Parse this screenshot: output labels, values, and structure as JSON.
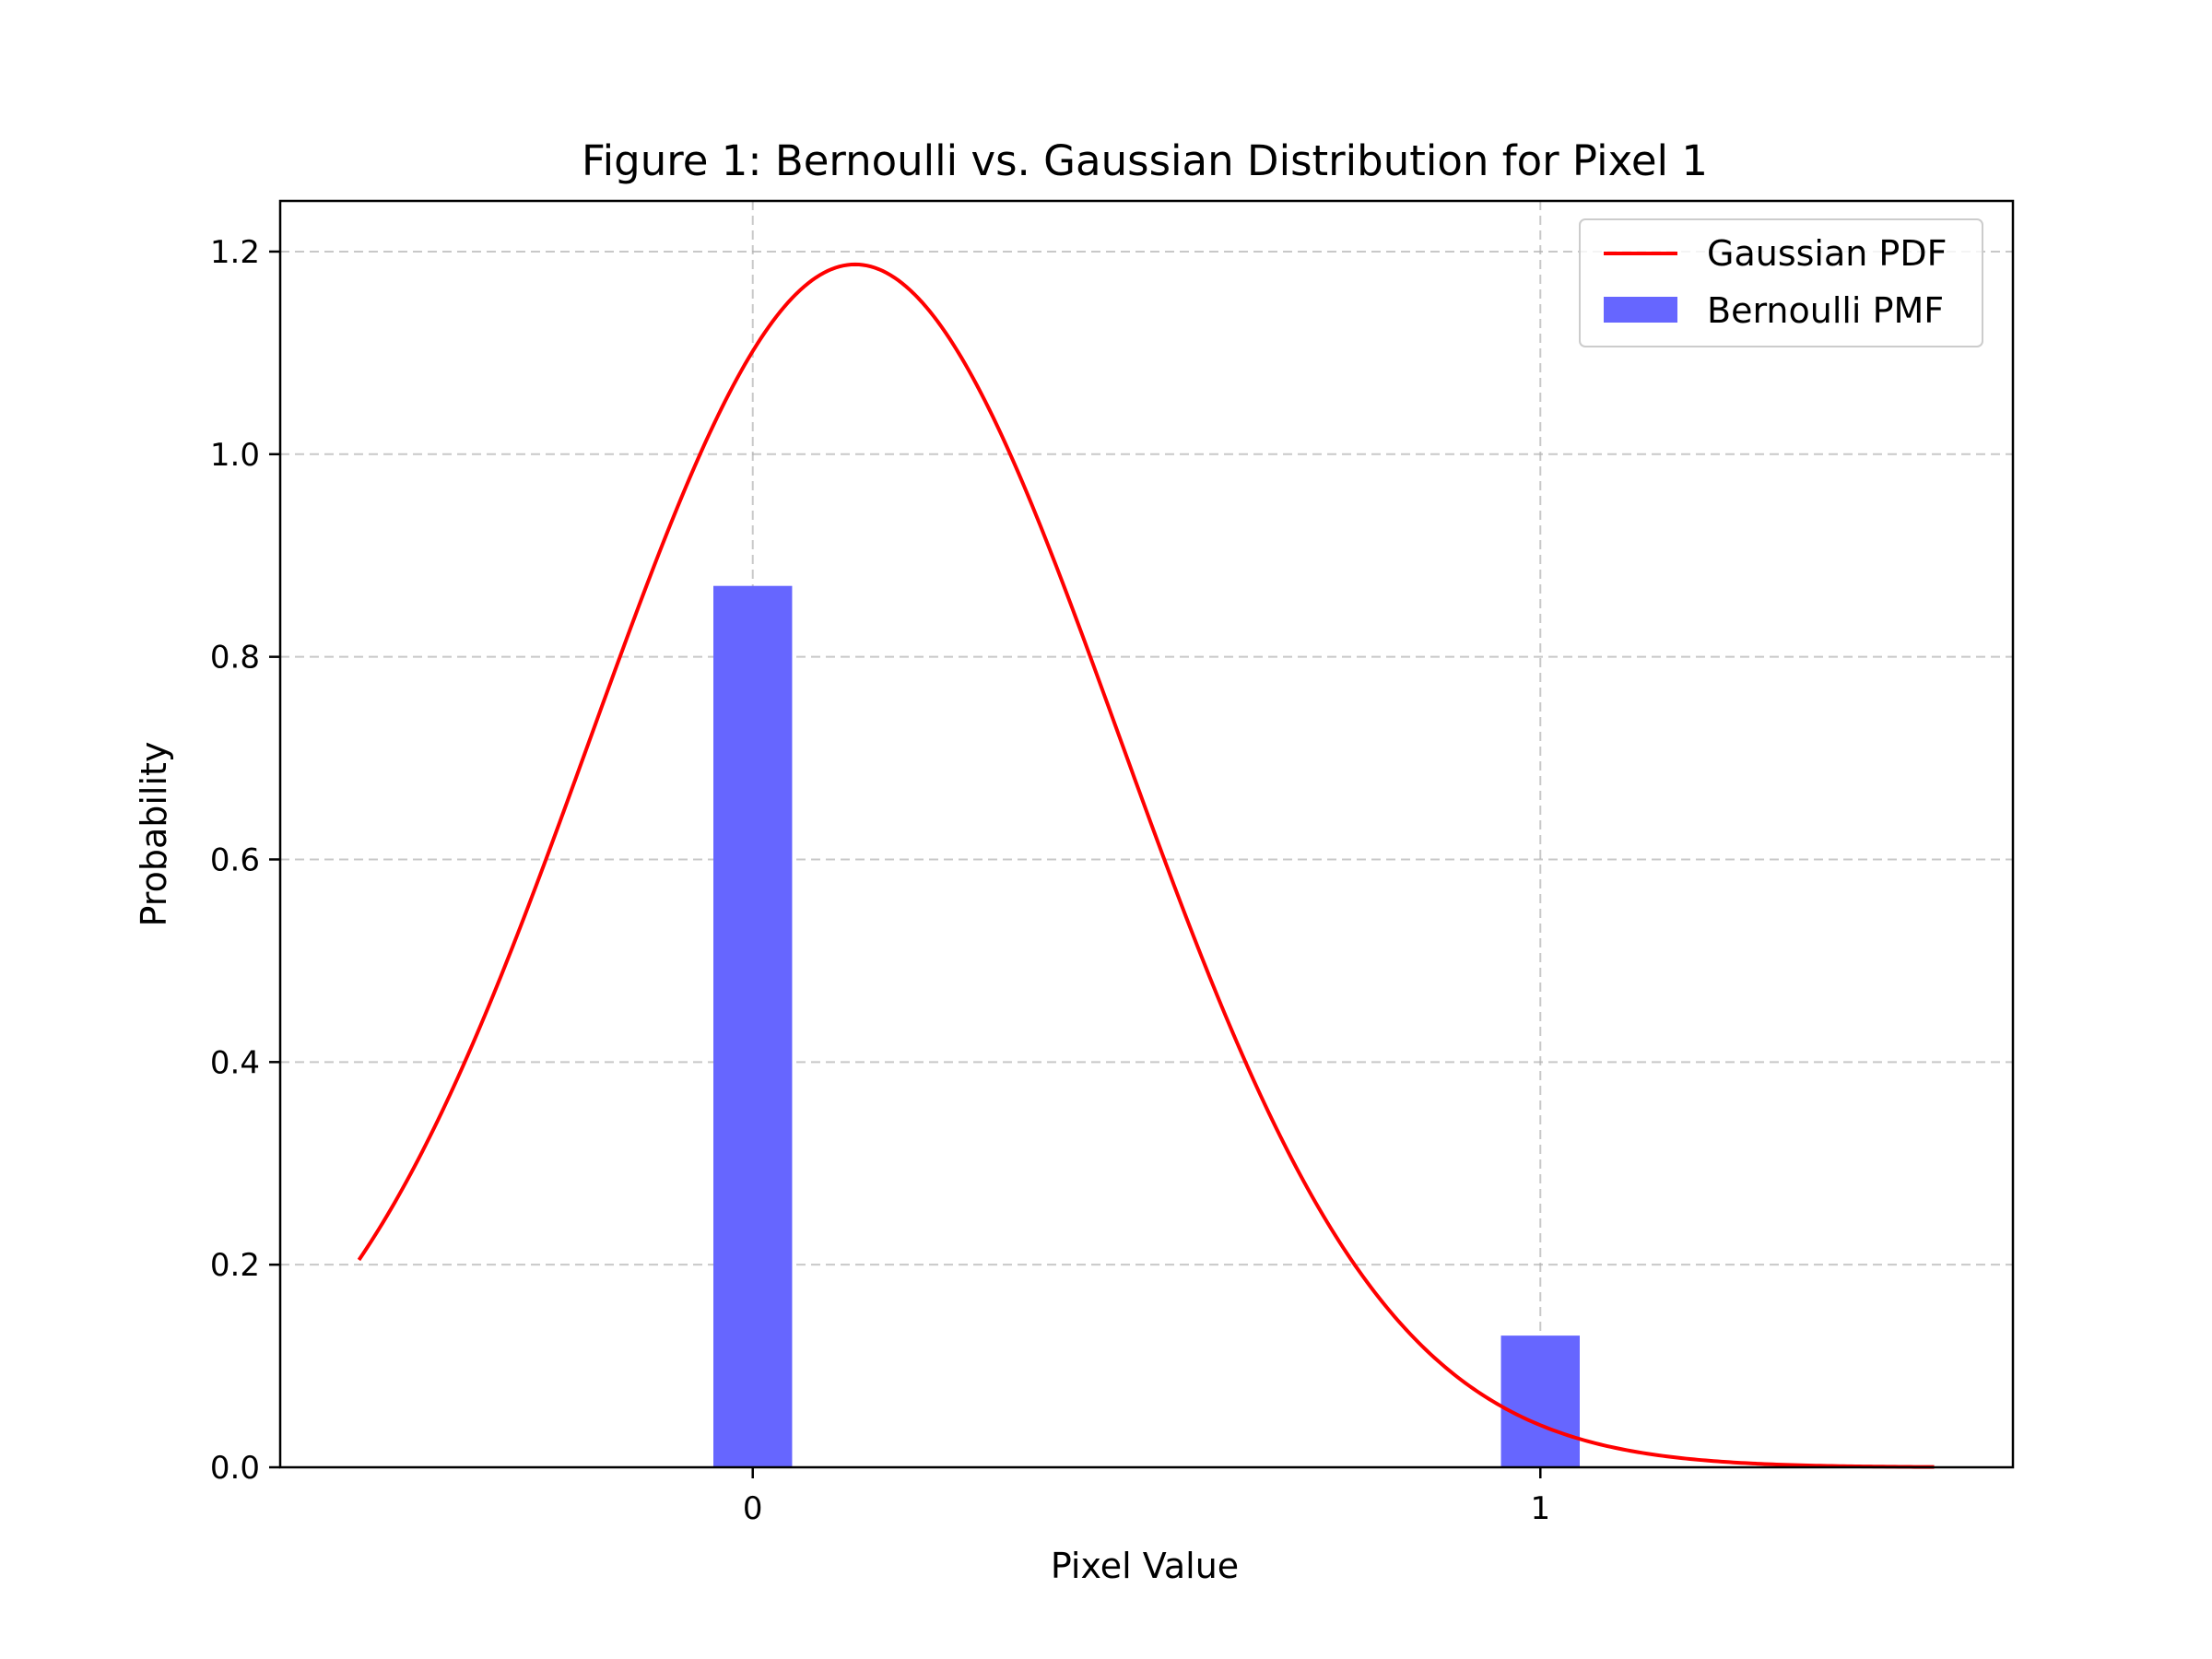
{
  "chart_data": {
    "type": "bar+line",
    "title": "Figure 1: Bernoulli vs. Gaussian Distribution for Pixel 1",
    "xlabel": "Pixel Value",
    "ylabel": "Probability",
    "xlim": [
      -0.6,
      1.6
    ],
    "ylim": [
      0,
      1.25
    ],
    "xticks": [
      0,
      1
    ],
    "yticks": [
      0.0,
      0.2,
      0.4,
      0.6,
      0.8,
      1.0,
      1.2
    ],
    "grid": true,
    "legend_position": "top-right",
    "bars": {
      "name": "Bernoulli PMF",
      "color": "#6666ff",
      "width": 0.1,
      "categories": [
        0,
        1
      ],
      "values": [
        0.87,
        0.13
      ]
    },
    "line": {
      "name": "Gaussian PDF",
      "color": "#ff0000",
      "mean": 0.13,
      "std": 0.336,
      "x_range": [
        -0.5,
        1.5
      ]
    }
  }
}
